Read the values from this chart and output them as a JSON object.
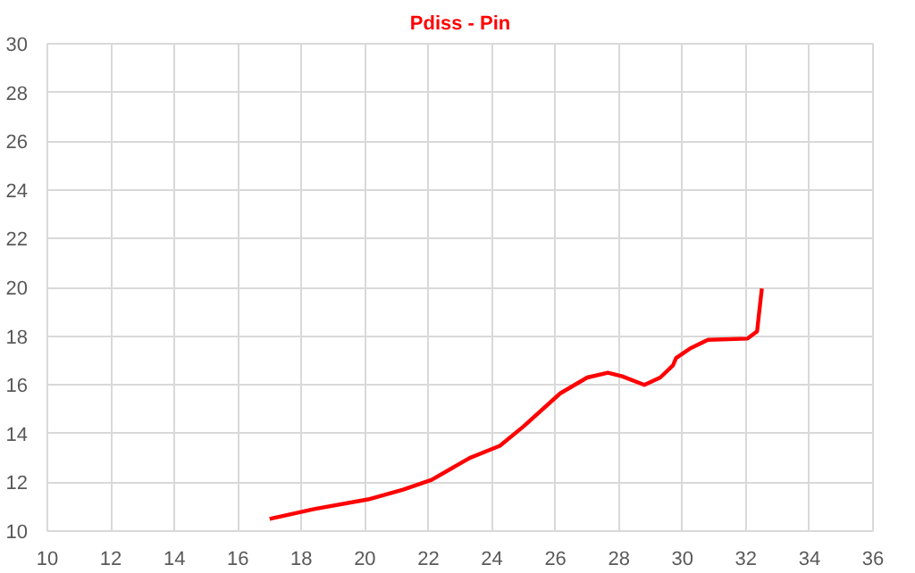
{
  "chart_data": {
    "type": "line",
    "title": "Pdiss - Pin",
    "series": [
      {
        "color": "#ff0000",
        "x": [
          17.0,
          18.4,
          20.1,
          21.2,
          22.1,
          23.3,
          24.25,
          25.0,
          26.15,
          27.0,
          27.65,
          28.1,
          28.8,
          29.3,
          29.7,
          29.8,
          30.25,
          30.8,
          32.05,
          32.35,
          32.4,
          32.5
        ],
        "values": [
          10.5,
          10.9,
          11.3,
          11.7,
          12.1,
          13.0,
          13.5,
          14.3,
          15.65,
          16.3,
          16.5,
          16.35,
          16.0,
          16.3,
          16.8,
          17.1,
          17.5,
          17.85,
          17.9,
          18.2,
          18.8,
          19.95
        ]
      }
    ],
    "xlim": [
      10,
      36
    ],
    "xticks": [
      10,
      12,
      14,
      16,
      18,
      20,
      22,
      24,
      26,
      28,
      30,
      32,
      34,
      36
    ],
    "ylim": [
      10,
      30
    ],
    "yticks": [
      10,
      12,
      14,
      16,
      18,
      20,
      22,
      24,
      26,
      28,
      30
    ],
    "grid": true,
    "marker": "none",
    "line_style": "solid"
  }
}
